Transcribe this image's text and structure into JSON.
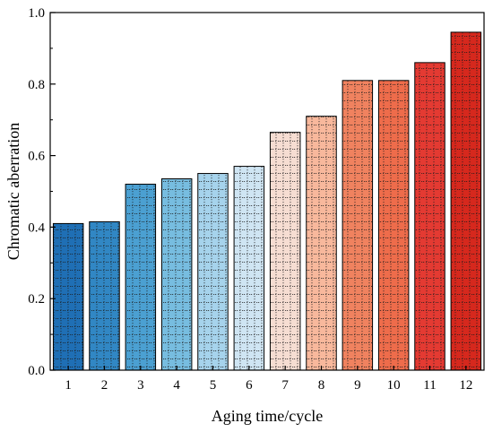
{
  "chart_data": {
    "type": "bar",
    "categories": [
      "1",
      "2",
      "3",
      "4",
      "5",
      "6",
      "7",
      "8",
      "9",
      "10",
      "11",
      "12"
    ],
    "values": [
      0.41,
      0.415,
      0.52,
      0.535,
      0.55,
      0.57,
      0.665,
      0.71,
      0.81,
      0.81,
      0.86,
      0.945
    ],
    "colors": [
      "#1f6fb5",
      "#3187c4",
      "#4ba0d2",
      "#77bde0",
      "#a6d3ec",
      "#cfe5f3",
      "#f6ddd2",
      "#f8b89c",
      "#f0825f",
      "#ee6c4b",
      "#e43a32",
      "#d6281d"
    ],
    "fill_pattern": "dotted-grid",
    "title": "",
    "xlabel": "Aging time/cycle",
    "ylabel": "Chromatic aberration",
    "ylim": [
      0,
      1.0
    ],
    "yticks": [
      0.0,
      0.2,
      0.4,
      0.6,
      0.8,
      1.0
    ],
    "ytick_labels": [
      "0.0",
      "0.2",
      "0.4",
      "0.6",
      "0.8",
      "1.0"
    ],
    "grid": false,
    "legend": "none"
  }
}
